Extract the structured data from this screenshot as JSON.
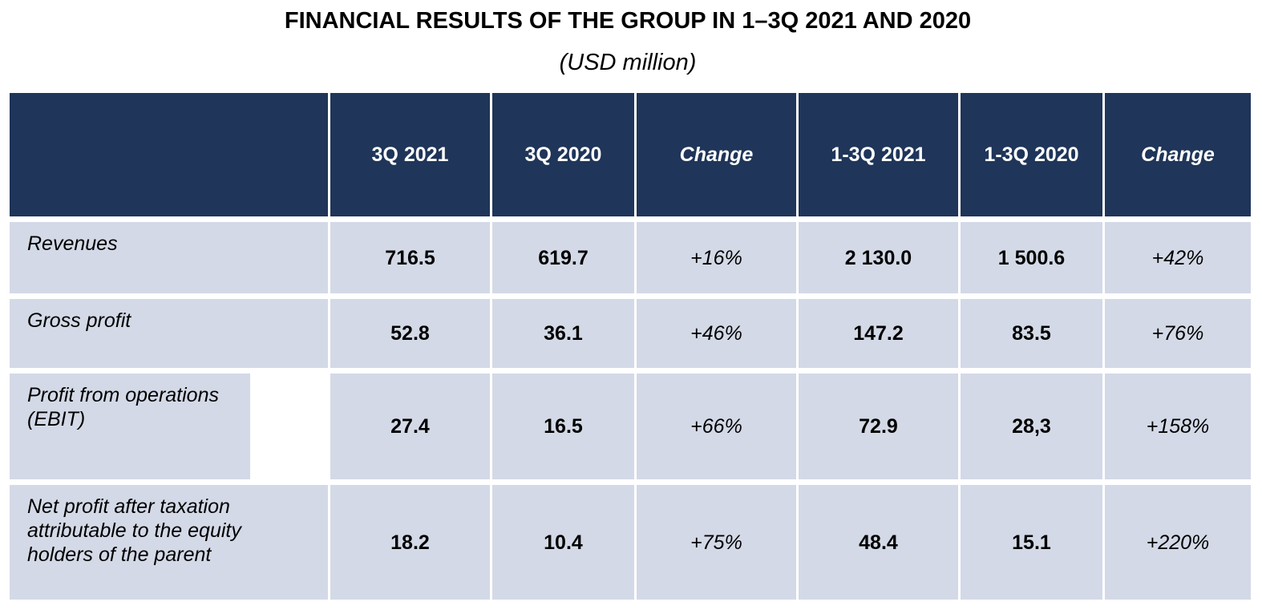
{
  "chart_data": {
    "type": "table",
    "title": "FINANCIAL RESULTS OF THE GROUP IN 1–3Q 2021 AND 2020",
    "subtitle": "(USD million)",
    "columns": [
      "",
      "3Q 2021",
      "3Q 2020",
      "Change",
      "1-3Q 2021",
      "1-3Q 2020",
      "Change"
    ],
    "rows": [
      {
        "label": "Revenues",
        "values": [
          "716.5",
          "619.7",
          "+16%",
          "2 130.0",
          "1 500.6",
          "+42%"
        ]
      },
      {
        "label": "Gross profit",
        "values": [
          "52.8",
          "36.1",
          "+46%",
          "147.2",
          "83.5",
          "+76%"
        ]
      },
      {
        "label": "Profit from operations (EBIT)",
        "values": [
          "27.4",
          "16.5",
          "+66%",
          "72.9",
          "28,3",
          "+158%"
        ]
      },
      {
        "label": "Net profit after taxation attributable to the equity holders of the parent",
        "values": [
          "18.2",
          "10.4",
          "+75%",
          "48.4",
          "15.1",
          "+220%"
        ]
      }
    ]
  },
  "colors": {
    "header_bg": "#1f3559",
    "row_bg": "#d3d9e6"
  }
}
